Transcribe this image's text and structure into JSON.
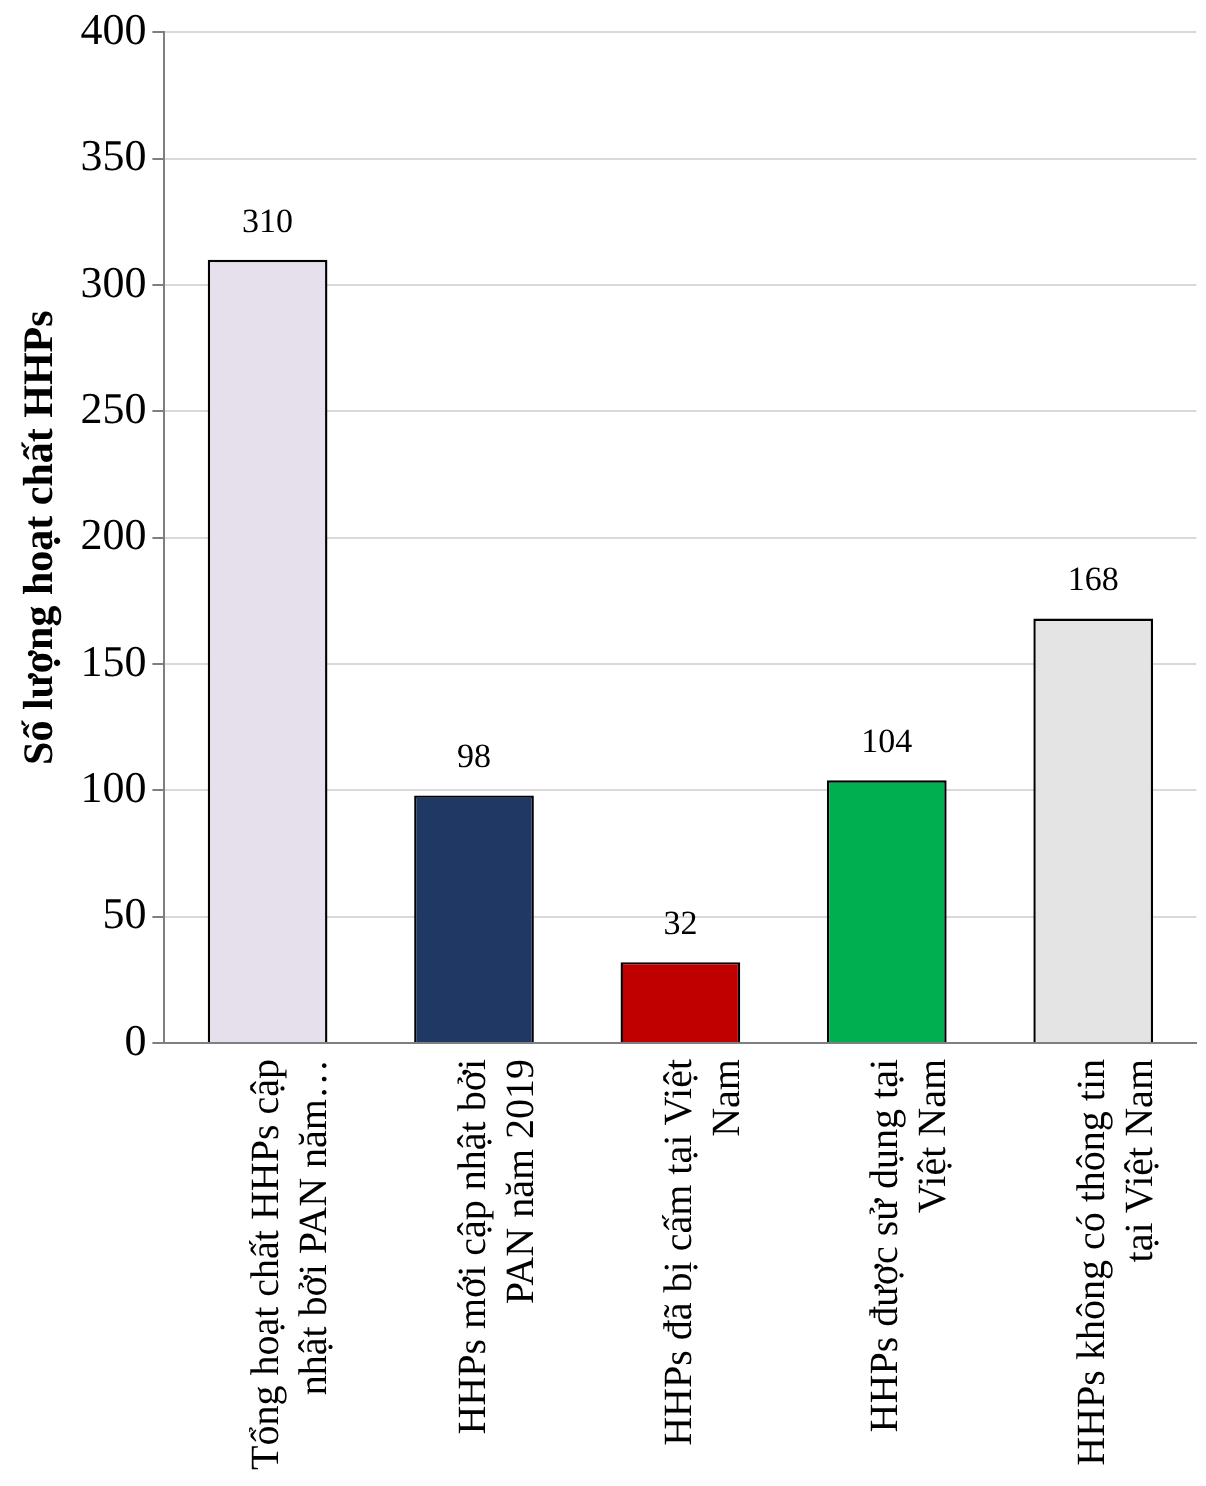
{
  "chart_data": {
    "type": "bar",
    "ylabel": "Số lượng hoạt chất HHPs",
    "categories": [
      "Tổng hoạt chất HHPs cập nhật bởi PAN năm…",
      "HHPs mới cập nhật bởi PAN năm 2019",
      "HHPs đã bị cấm tại Việt Nam",
      "HHPs được sử dụng tại Việt Nam",
      "HHPs không có thông tin tại Việt Nam"
    ],
    "values": [
      310,
      98,
      32,
      104,
      168
    ],
    "colors": [
      "#e6e0ec",
      "#1f3864",
      "#c00000",
      "#00b050",
      "#e4e4e4"
    ],
    "ylim": [
      0,
      400
    ],
    "yticks": [
      0,
      50,
      100,
      150,
      200,
      250,
      300,
      350,
      400
    ],
    "grid": "y",
    "data_labels": true,
    "legend": false
  }
}
